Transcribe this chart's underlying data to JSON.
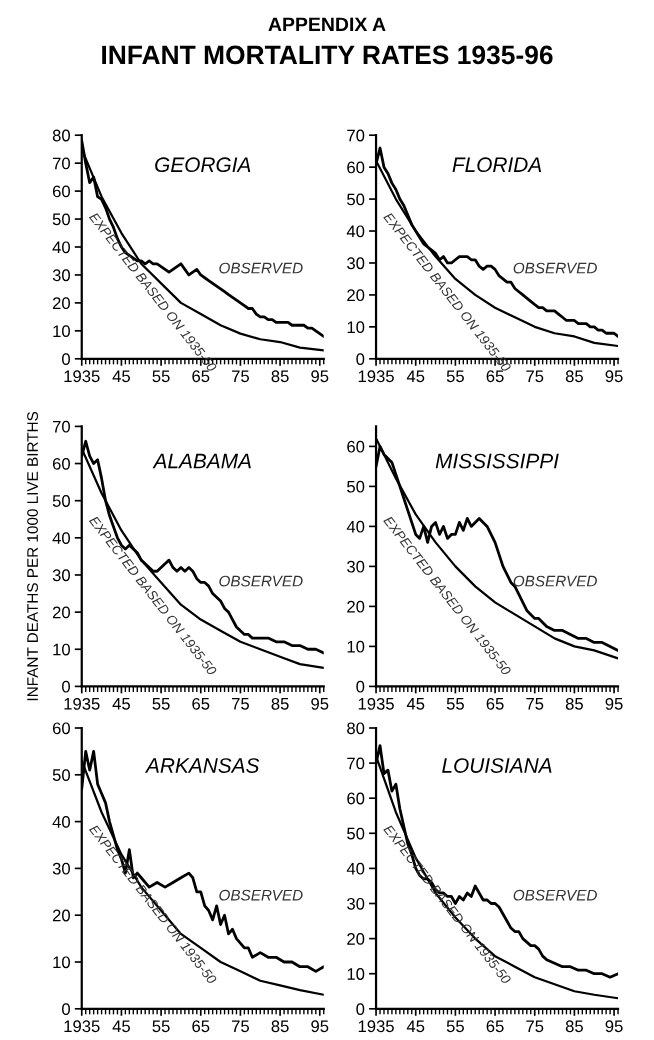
{
  "chart_data": [
    {
      "type": "line",
      "title": "GEORGIA",
      "annotations": [
        "APPENDIX A",
        "INFANT MORTALITY RATES 1935-96",
        "OBSERVED",
        "EXPECTED BASED ON 1935-50"
      ],
      "xlim": [
        1935,
        1996
      ],
      "xticks": [
        1935,
        {
          "value": 1945,
          "label": "45"
        },
        {
          "value": 1955,
          "label": "55"
        },
        {
          "value": 1965,
          "label": "65"
        },
        {
          "value": 1975,
          "label": "75"
        },
        {
          "value": 1985,
          "label": "85"
        },
        {
          "value": 1995,
          "label": "95"
        }
      ],
      "ylim": [
        0,
        80
      ],
      "yticks": [
        0,
        10,
        20,
        30,
        40,
        50,
        60,
        70,
        80
      ],
      "series": [
        {
          "color": "#000000",
          "x": [
            1935,
            1936,
            1937,
            1938,
            1939,
            1940,
            1941,
            1942,
            1943,
            1944,
            1945,
            1946,
            1947,
            1948,
            1949,
            1950,
            1951,
            1952,
            1953,
            1954,
            1955,
            1956,
            1957,
            1958,
            1959,
            1960,
            1961,
            1962,
            1963,
            1964,
            1965,
            1966,
            1967,
            1968,
            1969,
            1970,
            1971,
            1972,
            1973,
            1974,
            1975,
            1976,
            1977,
            1978,
            1979,
            1980,
            1981,
            1982,
            1983,
            1984,
            1985,
            1986,
            1987,
            1988,
            1989,
            1990,
            1991,
            1992,
            1993,
            1994,
            1995,
            1996
          ],
          "values": [
            78,
            70,
            63,
            65,
            58,
            57,
            54,
            50,
            47,
            43,
            40,
            38,
            37,
            36,
            35,
            35,
            34,
            35,
            34,
            34,
            33,
            32,
            31,
            32,
            33,
            34,
            32,
            30,
            31,
            32,
            30,
            29,
            28,
            27,
            26,
            25,
            24,
            23,
            22,
            21,
            20,
            19,
            18,
            18,
            16,
            15,
            15,
            14,
            14,
            13,
            13,
            13,
            13,
            12,
            12,
            12,
            12,
            11,
            11,
            10,
            9,
            8
          ]
        },
        {
          "color": "#000000",
          "x": [
            1935,
            1940,
            1945,
            1950,
            1955,
            1960,
            1965,
            1970,
            1975,
            1980,
            1985,
            1990,
            1996
          ],
          "values": [
            75,
            58,
            45,
            34,
            27,
            20,
            16,
            12,
            9,
            7,
            6,
            4,
            3
          ]
        }
      ]
    },
    {
      "type": "line",
      "title": "FLORIDA",
      "annotations": [
        "OBSERVED",
        "EXPECTED BASED ON 1935-50"
      ],
      "xlim": [
        1935,
        1996
      ],
      "xticks": [
        1935,
        {
          "value": 1945,
          "label": "45"
        },
        {
          "value": 1955,
          "label": "55"
        },
        {
          "value": 1965,
          "label": "65"
        },
        {
          "value": 1975,
          "label": "75"
        },
        {
          "value": 1985,
          "label": "85"
        },
        {
          "value": 1995,
          "label": "95"
        }
      ],
      "ylim": [
        0,
        70
      ],
      "yticks": [
        0,
        10,
        20,
        30,
        40,
        50,
        60,
        70
      ],
      "series": [
        {
          "color": "#000000",
          "x": [
            1935,
            1936,
            1937,
            1938,
            1939,
            1940,
            1941,
            1942,
            1943,
            1944,
            1945,
            1946,
            1947,
            1948,
            1949,
            1950,
            1951,
            1952,
            1953,
            1954,
            1955,
            1956,
            1957,
            1958,
            1959,
            1960,
            1961,
            1962,
            1963,
            1964,
            1965,
            1966,
            1967,
            1968,
            1969,
            1970,
            1971,
            1972,
            1973,
            1974,
            1975,
            1976,
            1977,
            1978,
            1979,
            1980,
            1981,
            1982,
            1983,
            1984,
            1985,
            1986,
            1987,
            1988,
            1989,
            1990,
            1991,
            1992,
            1993,
            1994,
            1995,
            1996
          ],
          "values": [
            61,
            66,
            60,
            58,
            55,
            53,
            50,
            48,
            45,
            42,
            40,
            38,
            36,
            35,
            34,
            33,
            31,
            32,
            30,
            30,
            31,
            32,
            32,
            32,
            31,
            31,
            29,
            28,
            29,
            29,
            28,
            26,
            25,
            24,
            24,
            22,
            21,
            20,
            19,
            18,
            17,
            16,
            16,
            15,
            15,
            15,
            14,
            13,
            12,
            12,
            12,
            11,
            11,
            11,
            10,
            10,
            9,
            9,
            8,
            8,
            8,
            7
          ]
        },
        {
          "color": "#000000",
          "x": [
            1935,
            1940,
            1945,
            1950,
            1955,
            1960,
            1965,
            1970,
            1975,
            1980,
            1985,
            1990,
            1996
          ],
          "values": [
            62,
            50,
            40,
            32,
            25,
            20,
            16,
            13,
            10,
            8,
            7,
            5,
            4
          ]
        }
      ]
    },
    {
      "type": "line",
      "title": "ALABAMA",
      "ylabel": "INFANT DEATHS PER 1000 LIVE BIRTHS",
      "annotations": [
        "OBSERVED",
        "EXPECTED BASED ON 1935-50"
      ],
      "xlim": [
        1935,
        1996
      ],
      "xticks": [
        1935,
        {
          "value": 1945,
          "label": "45"
        },
        {
          "value": 1955,
          "label": "55"
        },
        {
          "value": 1965,
          "label": "65"
        },
        {
          "value": 1975,
          "label": "75"
        },
        {
          "value": 1985,
          "label": "85"
        },
        {
          "value": 1995,
          "label": "95"
        }
      ],
      "ylim": [
        0,
        70
      ],
      "yticks": [
        0,
        10,
        20,
        30,
        40,
        50,
        60,
        70
      ],
      "series": [
        {
          "color": "#000000",
          "x": [
            1935,
            1936,
            1937,
            1938,
            1939,
            1940,
            1941,
            1942,
            1943,
            1944,
            1945,
            1946,
            1947,
            1948,
            1949,
            1950,
            1951,
            1952,
            1953,
            1954,
            1955,
            1956,
            1957,
            1958,
            1959,
            1960,
            1961,
            1962,
            1963,
            1964,
            1965,
            1966,
            1967,
            1968,
            1969,
            1970,
            1971,
            1972,
            1973,
            1974,
            1975,
            1976,
            1977,
            1978,
            1980,
            1982,
            1984,
            1986,
            1988,
            1990,
            1992,
            1994,
            1996
          ],
          "values": [
            62,
            66,
            62,
            60,
            61,
            56,
            50,
            46,
            43,
            40,
            38,
            37,
            38,
            37,
            36,
            34,
            33,
            32,
            31,
            31,
            32,
            33,
            34,
            32,
            31,
            32,
            31,
            32,
            31,
            29,
            28,
            28,
            27,
            25,
            24,
            23,
            21,
            20,
            18,
            16,
            15,
            14,
            14,
            13,
            13,
            13,
            12,
            12,
            11,
            11,
            10,
            10,
            9
          ]
        },
        {
          "color": "#000000",
          "x": [
            1935,
            1940,
            1945,
            1950,
            1955,
            1960,
            1965,
            1970,
            1975,
            1980,
            1985,
            1990,
            1996
          ],
          "values": [
            64,
            52,
            42,
            34,
            28,
            22,
            18,
            15,
            12,
            10,
            8,
            6,
            5
          ]
        }
      ]
    },
    {
      "type": "line",
      "title": "MISSISSIPPI",
      "annotations": [
        "OBSERVED",
        "EXPECTED BASED ON 1935-50"
      ],
      "xlim": [
        1935,
        1996
      ],
      "xticks": [
        1935,
        {
          "value": 1945,
          "label": "45"
        },
        {
          "value": 1955,
          "label": "55"
        },
        {
          "value": 1965,
          "label": "65"
        },
        {
          "value": 1975,
          "label": "75"
        },
        {
          "value": 1985,
          "label": "85"
        },
        {
          "value": 1995,
          "label": "95"
        }
      ],
      "ylim": [
        0,
        65
      ],
      "yticks": [
        0,
        10,
        20,
        30,
        40,
        50,
        60
      ],
      "series": [
        {
          "color": "#000000",
          "x": [
            1935,
            1936,
            1937,
            1938,
            1939,
            1940,
            1941,
            1942,
            1943,
            1944,
            1945,
            1946,
            1947,
            1948,
            1949,
            1950,
            1951,
            1952,
            1953,
            1954,
            1955,
            1956,
            1957,
            1958,
            1959,
            1960,
            1961,
            1962,
            1963,
            1964,
            1965,
            1966,
            1967,
            1968,
            1969,
            1970,
            1971,
            1972,
            1973,
            1974,
            1975,
            1976,
            1977,
            1978,
            1980,
            1982,
            1984,
            1986,
            1988,
            1990,
            1992,
            1994,
            1996
          ],
          "values": [
            55,
            60,
            58,
            57,
            56,
            53,
            50,
            47,
            44,
            41,
            38,
            37,
            40,
            36,
            40,
            41,
            38,
            40,
            37,
            38,
            38,
            41,
            39,
            42,
            40,
            41,
            42,
            41,
            40,
            38,
            36,
            33,
            30,
            28,
            26,
            25,
            23,
            21,
            19,
            18,
            17,
            17,
            16,
            15,
            14,
            14,
            13,
            12,
            12,
            11,
            11,
            10,
            9
          ]
        },
        {
          "color": "#000000",
          "x": [
            1935,
            1940,
            1945,
            1950,
            1955,
            1960,
            1965,
            1970,
            1975,
            1980,
            1985,
            1990,
            1996
          ],
          "values": [
            62,
            52,
            43,
            36,
            30,
            25,
            21,
            18,
            15,
            12,
            10,
            9,
            7
          ]
        }
      ]
    },
    {
      "type": "line",
      "title": "ARKANSAS",
      "annotations": [
        "OBSERVED",
        "EXPECTED BASED ON 1935-50"
      ],
      "xlim": [
        1935,
        1996
      ],
      "xticks": [
        1935,
        {
          "value": 1945,
          "label": "45"
        },
        {
          "value": 1955,
          "label": "55"
        },
        {
          "value": 1965,
          "label": "65"
        },
        {
          "value": 1975,
          "label": "75"
        },
        {
          "value": 1985,
          "label": "85"
        },
        {
          "value": 1995,
          "label": "95"
        }
      ],
      "ylim": [
        0,
        60
      ],
      "yticks": [
        0,
        10,
        20,
        30,
        40,
        50,
        60
      ],
      "series": [
        {
          "color": "#000000",
          "x": [
            1935,
            1936,
            1937,
            1938,
            1939,
            1940,
            1941,
            1942,
            1943,
            1944,
            1945,
            1946,
            1947,
            1948,
            1949,
            1950,
            1952,
            1954,
            1956,
            1958,
            1960,
            1962,
            1963,
            1964,
            1965,
            1966,
            1967,
            1968,
            1969,
            1970,
            1971,
            1972,
            1973,
            1974,
            1976,
            1977,
            1978,
            1980,
            1982,
            1984,
            1986,
            1988,
            1990,
            1992,
            1994,
            1996
          ],
          "values": [
            47,
            55,
            51,
            55,
            48,
            46,
            44,
            40,
            37,
            34,
            32,
            29,
            34,
            28,
            29,
            28,
            26,
            27,
            26,
            27,
            28,
            29,
            28,
            25,
            25,
            22,
            21,
            19,
            22,
            18,
            20,
            16,
            17,
            15,
            13,
            13,
            11,
            12,
            11,
            11,
            10,
            10,
            9,
            9,
            8,
            9
          ]
        },
        {
          "color": "#000000",
          "x": [
            1935,
            1940,
            1945,
            1950,
            1955,
            1960,
            1965,
            1970,
            1975,
            1980,
            1985,
            1990,
            1996
          ],
          "values": [
            53,
            42,
            33,
            26,
            21,
            16,
            13,
            10,
            8,
            6,
            5,
            4,
            3
          ]
        }
      ]
    },
    {
      "type": "line",
      "title": "LOUISIANA",
      "annotations": [
        "OBSERVED",
        "EXPECTED BASED ON 1935-50"
      ],
      "xlim": [
        1935,
        1996
      ],
      "xticks": [
        1935,
        {
          "value": 1945,
          "label": "45"
        },
        {
          "value": 1955,
          "label": "55"
        },
        {
          "value": 1965,
          "label": "65"
        },
        {
          "value": 1975,
          "label": "75"
        },
        {
          "value": 1985,
          "label": "85"
        },
        {
          "value": 1995,
          "label": "95"
        }
      ],
      "ylim": [
        0,
        80
      ],
      "yticks": [
        0,
        10,
        20,
        30,
        40,
        50,
        60,
        70,
        80
      ],
      "series": [
        {
          "color": "#000000",
          "x": [
            1935,
            1936,
            1937,
            1938,
            1939,
            1940,
            1941,
            1942,
            1943,
            1944,
            1945,
            1946,
            1947,
            1948,
            1949,
            1950,
            1951,
            1952,
            1953,
            1954,
            1955,
            1956,
            1957,
            1958,
            1959,
            1960,
            1961,
            1962,
            1963,
            1964,
            1965,
            1966,
            1967,
            1968,
            1969,
            1970,
            1971,
            1972,
            1973,
            1974,
            1975,
            1976,
            1977,
            1978,
            1980,
            1982,
            1984,
            1986,
            1988,
            1990,
            1992,
            1994,
            1996
          ],
          "values": [
            70,
            75,
            67,
            68,
            62,
            64,
            57,
            52,
            47,
            44,
            40,
            38,
            37,
            37,
            36,
            34,
            33,
            33,
            32,
            32,
            30,
            32,
            31,
            33,
            32,
            35,
            33,
            31,
            31,
            30,
            30,
            29,
            27,
            25,
            23,
            22,
            22,
            20,
            19,
            18,
            18,
            17,
            15,
            14,
            13,
            12,
            12,
            11,
            11,
            10,
            10,
            9,
            10
          ]
        },
        {
          "color": "#000000",
          "x": [
            1935,
            1940,
            1945,
            1950,
            1955,
            1960,
            1965,
            1970,
            1975,
            1980,
            1985,
            1990,
            1996
          ],
          "values": [
            72,
            56,
            43,
            33,
            26,
            20,
            15,
            12,
            9,
            7,
            5,
            4,
            3
          ]
        }
      ]
    }
  ]
}
